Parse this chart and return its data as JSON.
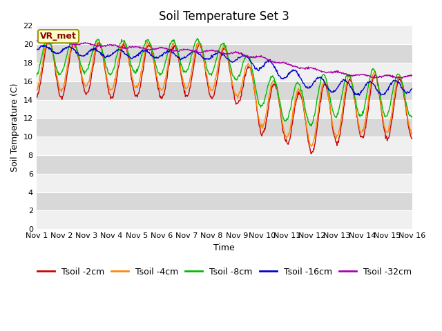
{
  "title": "Soil Temperature Set 3",
  "xlabel": "Time",
  "ylabel": "Soil Temperature (C)",
  "ylim": [
    0,
    22
  ],
  "xlim": [
    0,
    15
  ],
  "yticks": [
    0,
    2,
    4,
    6,
    8,
    10,
    12,
    14,
    16,
    18,
    20,
    22
  ],
  "xtick_labels": [
    "Nov 1",
    "Nov 2",
    "Nov 3",
    "Nov 4",
    "Nov 5",
    "Nov 6",
    "Nov 7",
    "Nov 8",
    "Nov 9",
    "Nov 10",
    "Nov 11",
    "Nov 12",
    "Nov 13",
    "Nov 14",
    "Nov 15",
    "Nov 16"
  ],
  "colors": {
    "2cm": "#cc0000",
    "4cm": "#ff8800",
    "8cm": "#00bb00",
    "16cm": "#0000cc",
    "32cm": "#aa00aa"
  },
  "fig_bg": "#ffffff",
  "plot_bg": "#e8e8e8",
  "band_light": "#f0f0f0",
  "band_dark": "#d8d8d8",
  "grid_color": "#ffffff",
  "title_fontsize": 12,
  "axis_fontsize": 9,
  "tick_fontsize": 8,
  "legend_fontsize": 9,
  "annotation_text": "VR_met",
  "lw": 1.0
}
